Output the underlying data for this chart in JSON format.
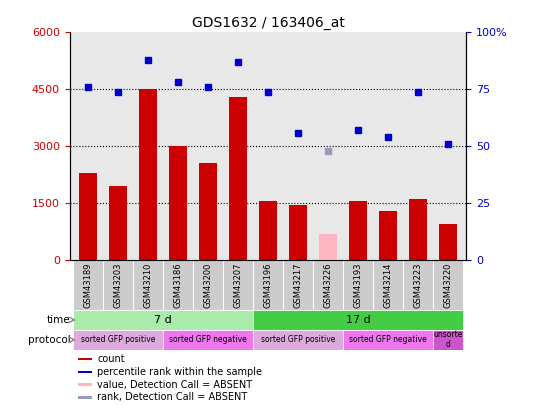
{
  "title": "GDS1632 / 163406_at",
  "samples": [
    "GSM43189",
    "GSM43203",
    "GSM43210",
    "GSM43186",
    "GSM43200",
    "GSM43207",
    "GSM43196",
    "GSM43217",
    "GSM43226",
    "GSM43193",
    "GSM43214",
    "GSM43223",
    "GSM43220"
  ],
  "bar_values": [
    2300,
    1950,
    4500,
    3000,
    2550,
    4300,
    1550,
    1450,
    700,
    1550,
    1300,
    1600,
    950
  ],
  "bar_colors": [
    "#cc0000",
    "#cc0000",
    "#cc0000",
    "#cc0000",
    "#cc0000",
    "#cc0000",
    "#cc0000",
    "#cc0000",
    "#ffb6c1",
    "#cc0000",
    "#cc0000",
    "#cc0000",
    "#cc0000"
  ],
  "rank_values": [
    76,
    74,
    88,
    78,
    76,
    87,
    74,
    56,
    48,
    57,
    54,
    74,
    51
  ],
  "rank_colors": [
    "#0000cc",
    "#0000cc",
    "#0000cc",
    "#0000cc",
    "#0000cc",
    "#0000cc",
    "#0000cc",
    "#0000cc",
    "#9999bb",
    "#0000cc",
    "#0000cc",
    "#0000cc",
    "#0000cc"
  ],
  "ylim_left": [
    0,
    6000
  ],
  "ylim_right": [
    0,
    100
  ],
  "yticks_left": [
    0,
    1500,
    3000,
    4500,
    6000
  ],
  "yticks_right": [
    0,
    25,
    50,
    75,
    100
  ],
  "ytick_labels_right": [
    "0",
    "25",
    "50",
    "75",
    "100%"
  ],
  "time_groups": [
    {
      "label": "7 d",
      "start": 0,
      "end": 6,
      "color": "#aaeaaa"
    },
    {
      "label": "17 d",
      "start": 6,
      "end": 13,
      "color": "#44cc44"
    }
  ],
  "protocol_groups": [
    {
      "label": "sorted GFP positive",
      "start": 0,
      "end": 3,
      "color": "#ddaadd"
    },
    {
      "label": "sorted GFP negative",
      "start": 3,
      "end": 6,
      "color": "#ee77ee"
    },
    {
      "label": "sorted GFP positive",
      "start": 6,
      "end": 9,
      "color": "#ddaadd"
    },
    {
      "label": "sorted GFP negative",
      "start": 9,
      "end": 12,
      "color": "#ee77ee"
    },
    {
      "label": "unsorte\nd",
      "start": 12,
      "end": 13,
      "color": "#cc55cc"
    }
  ],
  "legend_items": [
    {
      "label": "count",
      "color": "#cc0000"
    },
    {
      "label": "percentile rank within the sample",
      "color": "#0000cc"
    },
    {
      "label": "value, Detection Call = ABSENT",
      "color": "#ffb6c1"
    },
    {
      "label": "rank, Detection Call = ABSENT",
      "color": "#9999bb"
    }
  ],
  "bg_color": "#ffffff",
  "bar_width": 0.6,
  "sample_bg": "#cccccc"
}
